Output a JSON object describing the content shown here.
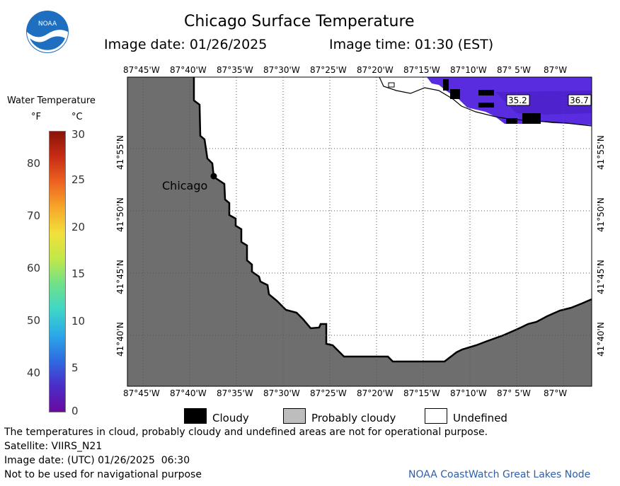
{
  "header": {
    "title": "Chicago Surface Temperature",
    "image_date": "Image date: 01/26/2025",
    "image_time": "Image time: 01:30 (EST)"
  },
  "logo": {
    "text": "NOAA"
  },
  "colorbar": {
    "title": "Water Temperature",
    "unit_f": "°F",
    "unit_c": "°C",
    "f_ticks": [
      "80",
      "70",
      "60",
      "50",
      "40"
    ],
    "c_ticks": [
      "30",
      "25",
      "20",
      "15",
      "10",
      "5",
      "0"
    ],
    "colors": [
      "#6a0aa0",
      "#4b2cc8",
      "#2f6ae0",
      "#2aa8e8",
      "#3fd6c8",
      "#6fe08a",
      "#c0e84a",
      "#f2e03a",
      "#f6a82a",
      "#ee6420",
      "#c82c14",
      "#8a140a"
    ]
  },
  "map": {
    "lon_ticks": [
      "87°45'W",
      "87°40'W",
      "87°35'W",
      "87°30'W",
      "87°25'W",
      "87°20'W",
      "87°15'W",
      "87°10'W",
      "87° 5'W",
      "87°W"
    ],
    "lat_ticks": [
      "41°55'N",
      "41°50'N",
      "41°45'N",
      "41°40'N"
    ],
    "city_label": "Chicago",
    "temp_labels": [
      "35.2",
      "36.7"
    ],
    "colors": {
      "land": "#6e6e6e",
      "water_cold": "#5a2ce0",
      "cloud": "#000000",
      "undefined": "#ffffff"
    }
  },
  "legend": {
    "cloudy": "Cloudy",
    "probably_cloudy": "Probably cloudy",
    "undefined": "Undefined"
  },
  "footer": {
    "disclaimer": "The temperatures in cloud, probably cloudy and undefined areas are not for operational purpose.",
    "satellite": "Satellite: VIIRS_N21",
    "utc_date": "Image date: (UTC) 01/26/2025  06:30",
    "nav_warning": "Not to be used for navigational purpose",
    "credit": "NOAA CoastWatch Great Lakes Node"
  }
}
